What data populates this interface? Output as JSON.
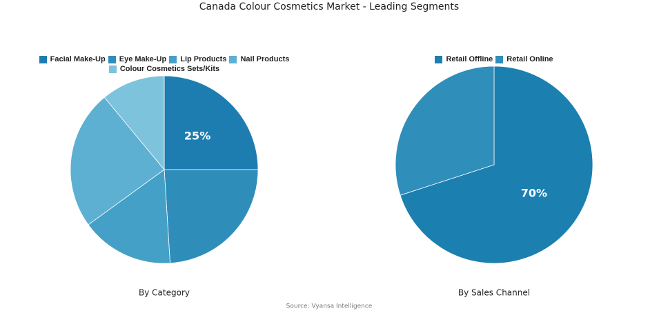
{
  "title": "Canada Colour Cosmetics Market - Leading Segments",
  "source": "Source: Vyansa Intelligence",
  "chart_data": [
    {
      "type": "pie",
      "title": "By Category",
      "categories": [
        "Facial Make-Up",
        "Eye Make-Up",
        "Lip Products",
        "Nail Products",
        "Colour Cosmetics Sets/Kits"
      ],
      "values": [
        25,
        24,
        16,
        24,
        11
      ],
      "value_labels": [
        "25%",
        null,
        null,
        null,
        null
      ],
      "colors": [
        "#1d7db0",
        "#2f8dba",
        "#45a0c8",
        "#5db0d2",
        "#7ec3dc"
      ]
    },
    {
      "type": "pie",
      "title": "By Sales Channel",
      "categories": [
        "Retail Offline",
        "Retail Online"
      ],
      "values": [
        70,
        30
      ],
      "value_labels": [
        "70%",
        null
      ],
      "colors": [
        "#1b7fb0",
        "#2f8eba"
      ]
    }
  ]
}
